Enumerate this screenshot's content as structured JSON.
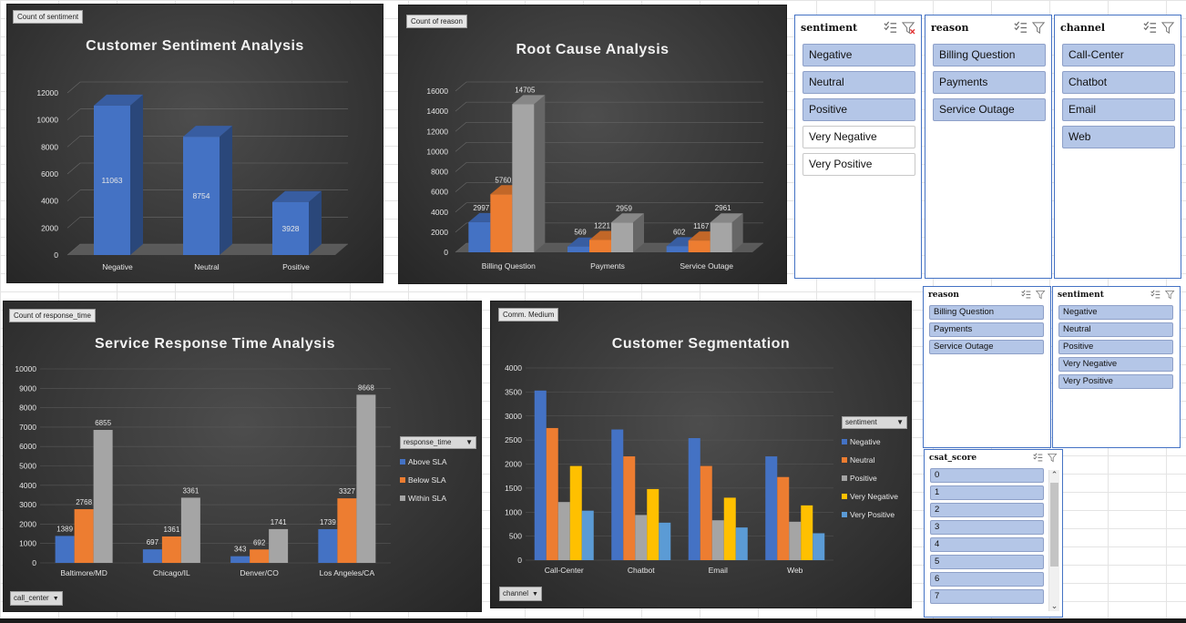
{
  "charts": {
    "sentiment": {
      "field_button": "Count of sentiment",
      "title": "Customer Sentiment Analysis",
      "chart_data": {
        "type": "bar",
        "title": "Customer Sentiment Analysis",
        "categories": [
          "Negative",
          "Neutral",
          "Positive"
        ],
        "values": [
          11063,
          8754,
          3928
        ],
        "value_labels": [
          "11063",
          "8754",
          "3928"
        ],
        "ylim": [
          0,
          12000
        ],
        "yticks": [
          "0",
          "2000",
          "4000",
          "6000",
          "8000",
          "10000",
          "12000"
        ],
        "color": "#4472c4"
      }
    },
    "reason": {
      "field_button": "Count of reason",
      "title": "Root Cause Analysis",
      "chart_data": {
        "type": "bar",
        "title": "Root Cause Analysis",
        "categories": [
          "Billing Question",
          "Payments",
          "Service Outage"
        ],
        "series": [
          {
            "values": [
              2997,
              569,
              602
            ],
            "labels": [
              "2997",
              "569",
              "602"
            ],
            "color": "#4472c4"
          },
          {
            "values": [
              5760,
              1221,
              1167
            ],
            "labels": [
              "5760",
              "1221",
              "1167"
            ],
            "color": "#ed7d31"
          },
          {
            "values": [
              14705,
              2959,
              2961
            ],
            "labels": [
              "14705",
              "2959",
              "2961"
            ],
            "color": "#a5a5a5"
          }
        ],
        "ylim": [
          0,
          16000
        ],
        "yticks": [
          "0",
          "2000",
          "4000",
          "6000",
          "8000",
          "10000",
          "12000",
          "14000",
          "16000"
        ]
      }
    },
    "response": {
      "field_button": "Count of response_time",
      "title": "Service Response Time Analysis",
      "legend_field": "response_time",
      "axis_field": "call_center",
      "chart_data": {
        "type": "bar",
        "title": "Service Response Time Analysis",
        "categories": [
          "Baltimore/MD",
          "Chicago/IL",
          "Denver/CO",
          "Los Angeles/CA"
        ],
        "series": [
          {
            "name": "Above SLA",
            "values": [
              1389,
              697,
              343,
              1739
            ],
            "labels": [
              "1389",
              "697",
              "343",
              "1739"
            ],
            "color": "#4472c4"
          },
          {
            "name": "Below SLA",
            "values": [
              2768,
              1361,
              692,
              3327
            ],
            "labels": [
              "2768",
              "1361",
              "692",
              "3327"
            ],
            "color": "#ed7d31"
          },
          {
            "name": "Within SLA",
            "values": [
              6855,
              3361,
              1741,
              8668
            ],
            "labels": [
              "6855",
              "3361",
              "1741",
              "8668"
            ],
            "color": "#a5a5a5"
          }
        ],
        "ylim": [
          0,
          10000
        ],
        "yticks": [
          "0",
          "1000",
          "2000",
          "3000",
          "4000",
          "5000",
          "6000",
          "7000",
          "8000",
          "9000",
          "10000"
        ]
      }
    },
    "segmentation": {
      "field_button": "Comm. Medium",
      "title": "Customer Segmentation",
      "legend_field": "sentiment",
      "axis_field": "channel",
      "chart_data": {
        "type": "bar",
        "title": "Customer Segmentation",
        "categories": [
          "Call-Center",
          "Chatbot",
          "Email",
          "Web"
        ],
        "series": [
          {
            "name": "Negative",
            "values": [
              3530,
              2720,
              2540,
              2160
            ],
            "color": "#4472c4"
          },
          {
            "name": "Neutral",
            "values": [
              2750,
              2160,
              1960,
              1730
            ],
            "color": "#ed7d31"
          },
          {
            "name": "Positive",
            "values": [
              1210,
              940,
              830,
              800
            ],
            "color": "#a5a5a5"
          },
          {
            "name": "Very Negative",
            "values": [
              1960,
              1480,
              1300,
              1140
            ],
            "color": "#ffc000"
          },
          {
            "name": "Very Positive",
            "values": [
              1030,
              780,
              680,
              560
            ],
            "color": "#5b9bd5"
          }
        ],
        "ylim": [
          0,
          4000
        ],
        "yticks": [
          "0",
          "500",
          "1000",
          "1500",
          "2000",
          "2500",
          "3000",
          "3500",
          "4000"
        ]
      }
    }
  },
  "slicers": {
    "sentiment_big": {
      "title": "sentiment",
      "items": [
        {
          "label": "Negative",
          "selected": true
        },
        {
          "label": "Neutral",
          "selected": true
        },
        {
          "label": "Positive",
          "selected": true
        },
        {
          "label": "Very Negative",
          "selected": false
        },
        {
          "label": "Very Positive",
          "selected": false
        }
      ]
    },
    "reason_big": {
      "title": "reason",
      "items": [
        {
          "label": "Billing Question",
          "selected": true
        },
        {
          "label": "Payments",
          "selected": true
        },
        {
          "label": "Service Outage",
          "selected": true
        }
      ]
    },
    "channel_big": {
      "title": "channel",
      "items": [
        {
          "label": "Call-Center",
          "selected": true
        },
        {
          "label": "Chatbot",
          "selected": true
        },
        {
          "label": "Email",
          "selected": true
        },
        {
          "label": "Web",
          "selected": true
        }
      ]
    },
    "reason_small": {
      "title": "reason",
      "items": [
        {
          "label": "Billing Question",
          "selected": true
        },
        {
          "label": "Payments",
          "selected": true
        },
        {
          "label": "Service Outage",
          "selected": true
        }
      ]
    },
    "sentiment_small": {
      "title": "sentiment",
      "items": [
        {
          "label": "Negative",
          "selected": true
        },
        {
          "label": "Neutral",
          "selected": true
        },
        {
          "label": "Positive",
          "selected": true
        },
        {
          "label": "Very Negative",
          "selected": true
        },
        {
          "label": "Very Positive",
          "selected": true
        }
      ]
    },
    "csat": {
      "title": "csat_score",
      "items": [
        {
          "label": "0",
          "selected": true
        },
        {
          "label": "1",
          "selected": true
        },
        {
          "label": "2",
          "selected": true
        },
        {
          "label": "3",
          "selected": true
        },
        {
          "label": "4",
          "selected": true
        },
        {
          "label": "5",
          "selected": true
        },
        {
          "label": "6",
          "selected": true
        },
        {
          "label": "7",
          "selected": true
        }
      ]
    }
  },
  "icons": {
    "multi_select": "multi-select-icon",
    "clear_filter": "clear-filter-icon"
  }
}
